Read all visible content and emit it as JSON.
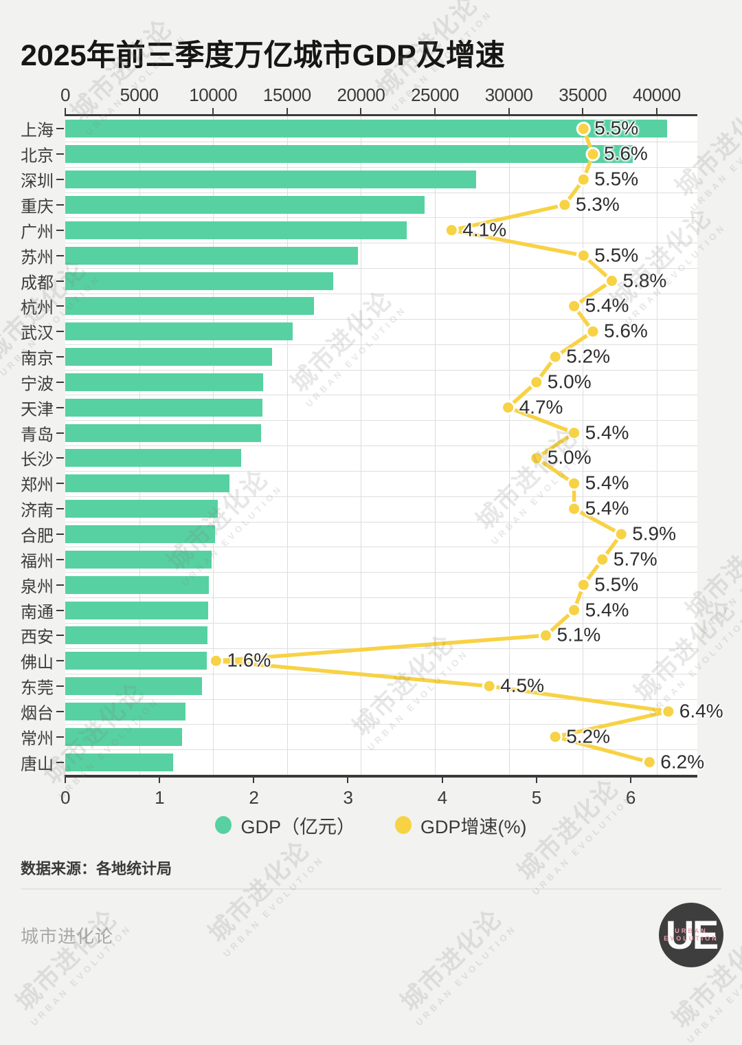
{
  "title": "2025年前三季度万亿城市GDP及增速",
  "chart_data": {
    "type": "bar",
    "orientation": "horizontal",
    "categories": [
      "上海",
      "北京",
      "深圳",
      "重庆",
      "广州",
      "苏州",
      "成都",
      "杭州",
      "武汉",
      "南京",
      "宁波",
      "天津",
      "青岛",
      "长沙",
      "郑州",
      "济南",
      "合肥",
      "福州",
      "泉州",
      "南通",
      "西安",
      "佛山",
      "东莞",
      "烟台",
      "常州",
      "唐山"
    ],
    "series": [
      {
        "name": "GDP（亿元）",
        "axis": "top",
        "color": "#57d1a1",
        "values": [
          40700,
          38400,
          27800,
          24300,
          23100,
          19800,
          18100,
          16800,
          15400,
          14000,
          13400,
          13350,
          13250,
          11900,
          11100,
          10300,
          10150,
          9900,
          9700,
          9650,
          9600,
          9550,
          9250,
          8150,
          7900,
          7300
        ]
      },
      {
        "name": "GDP增速(%)",
        "axis": "bottom",
        "color": "#f7d244",
        "values": [
          5.5,
          5.6,
          5.5,
          5.3,
          4.1,
          5.5,
          5.8,
          5.4,
          5.6,
          5.2,
          5.0,
          4.7,
          5.4,
          5.0,
          5.4,
          5.4,
          5.9,
          5.7,
          5.5,
          5.4,
          5.1,
          1.6,
          4.5,
          6.4,
          5.2,
          6.2
        ],
        "labels": [
          "5.5%",
          "5.6%",
          "5.5%",
          "5.3%",
          "4.1%",
          "5.5%",
          "5.8%",
          "5.4%",
          "5.6%",
          "5.2%",
          "5.0%",
          "4.7%",
          "5.4%",
          "5.0%",
          "5.4%",
          "5.4%",
          "5.9%",
          "5.7%",
          "5.5%",
          "5.4%",
          "5.1%",
          "1.6%",
          "4.5%",
          "6.4%",
          "5.2%",
          "6.2%"
        ]
      }
    ],
    "top_axis": {
      "min": 0,
      "max": 42750,
      "ticks": [
        0,
        5000,
        10000,
        15000,
        20000,
        25000,
        30000,
        35000,
        40000
      ]
    },
    "bottom_axis": {
      "min": 0,
      "max": 6.71,
      "ticks": [
        0,
        1,
        2,
        3,
        4,
        5,
        6
      ]
    },
    "grid": true,
    "legend_position": "bottom",
    "title": "2025年前三季度万亿城市GDP及增速"
  },
  "legend": [
    {
      "label": "GDP（亿元）",
      "color": "#57d1a1"
    },
    {
      "label": "GDP增速(%)",
      "color": "#f7d244"
    }
  ],
  "source": "数据来源：各地统计局",
  "watermark": {
    "cn": "城市进化论",
    "en": "URBAN EVOLUTION"
  },
  "footer": {
    "brand": "城市进化论",
    "logo": {
      "monogram": "UE",
      "line1": "URBAN",
      "line2": "EVOLUTION"
    }
  }
}
